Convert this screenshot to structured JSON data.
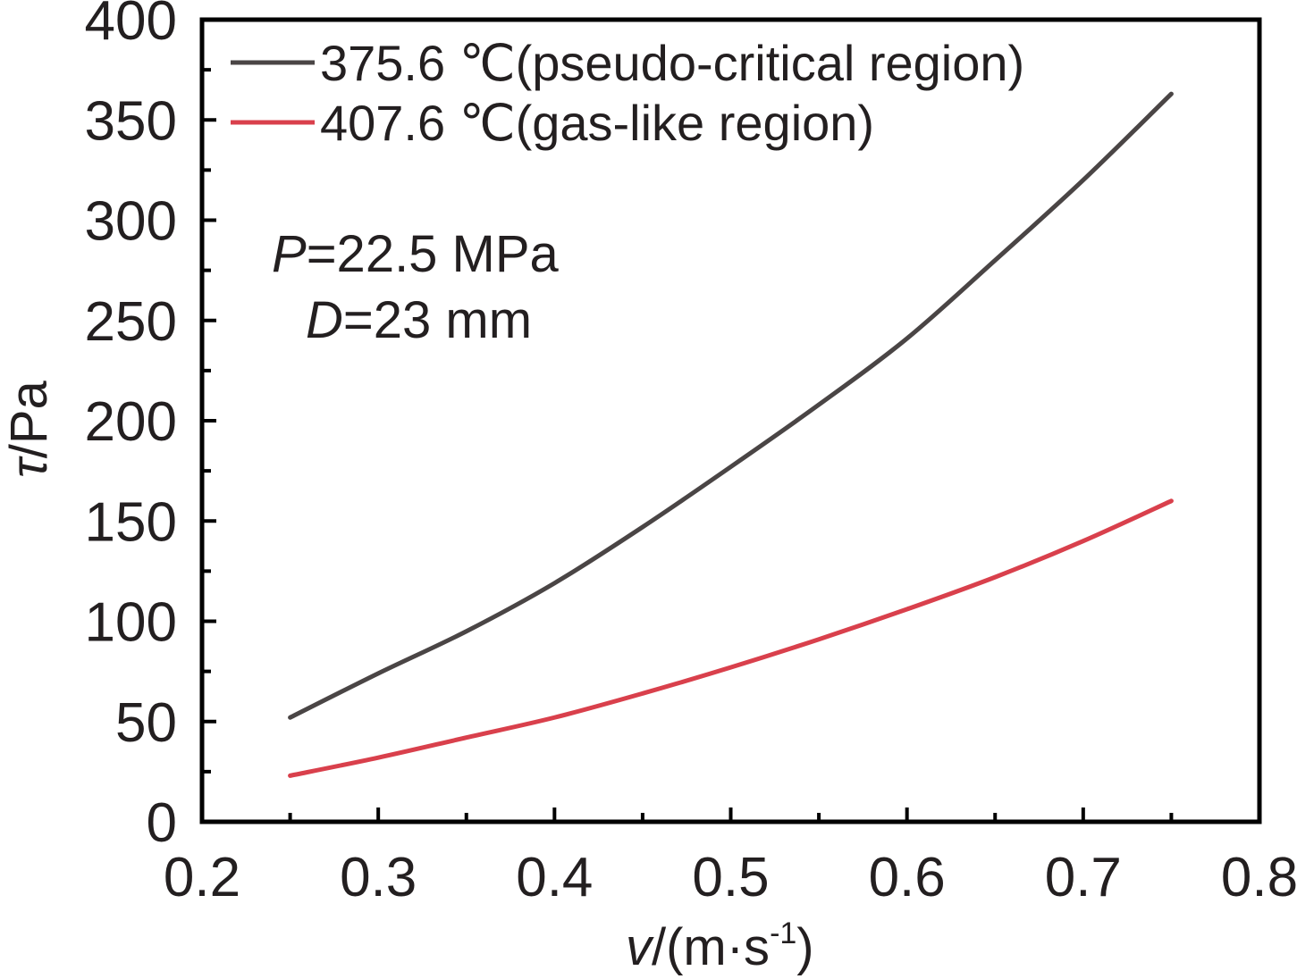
{
  "chart_data": {
    "type": "line",
    "xlim": [
      0.2,
      0.8
    ],
    "ylim": [
      0,
      400
    ],
    "x_ticks": [
      "0.2",
      "0.3",
      "0.4",
      "0.5",
      "0.6",
      "0.7",
      "0.8"
    ],
    "y_ticks": [
      "0",
      "50",
      "100",
      "150",
      "200",
      "250",
      "300",
      "350",
      "400"
    ],
    "xlabel": {
      "var": "v",
      "unit_prefix": "/(m·s",
      "sup": "-1",
      "unit_suffix": ")"
    },
    "ylabel": {
      "var": "τ",
      "unit": "/Pa"
    },
    "legend_position": "top-left",
    "grid": false,
    "annotations": {
      "line1": {
        "var": "P",
        "rest": "=22.5 MPa"
      },
      "line2": {
        "var": "D",
        "rest": "=23 mm"
      }
    },
    "series": [
      {
        "name": "375.6 ℃(pseudo-critical region)",
        "color": "#4a4545",
        "x": [
          0.25,
          0.3,
          0.35,
          0.4,
          0.45,
          0.5,
          0.55,
          0.6,
          0.65,
          0.7,
          0.75
        ],
        "y": [
          52,
          74,
          95,
          119,
          147,
          177,
          208,
          241,
          280,
          320,
          363
        ]
      },
      {
        "name": "407.6 ℃(gas-like region)",
        "color": "#d9404c",
        "x": [
          0.25,
          0.3,
          0.35,
          0.4,
          0.45,
          0.5,
          0.55,
          0.6,
          0.65,
          0.7,
          0.75
        ],
        "y": [
          23,
          32,
          42,
          52,
          64,
          77,
          91,
          106,
          122,
          140,
          160
        ]
      }
    ]
  }
}
